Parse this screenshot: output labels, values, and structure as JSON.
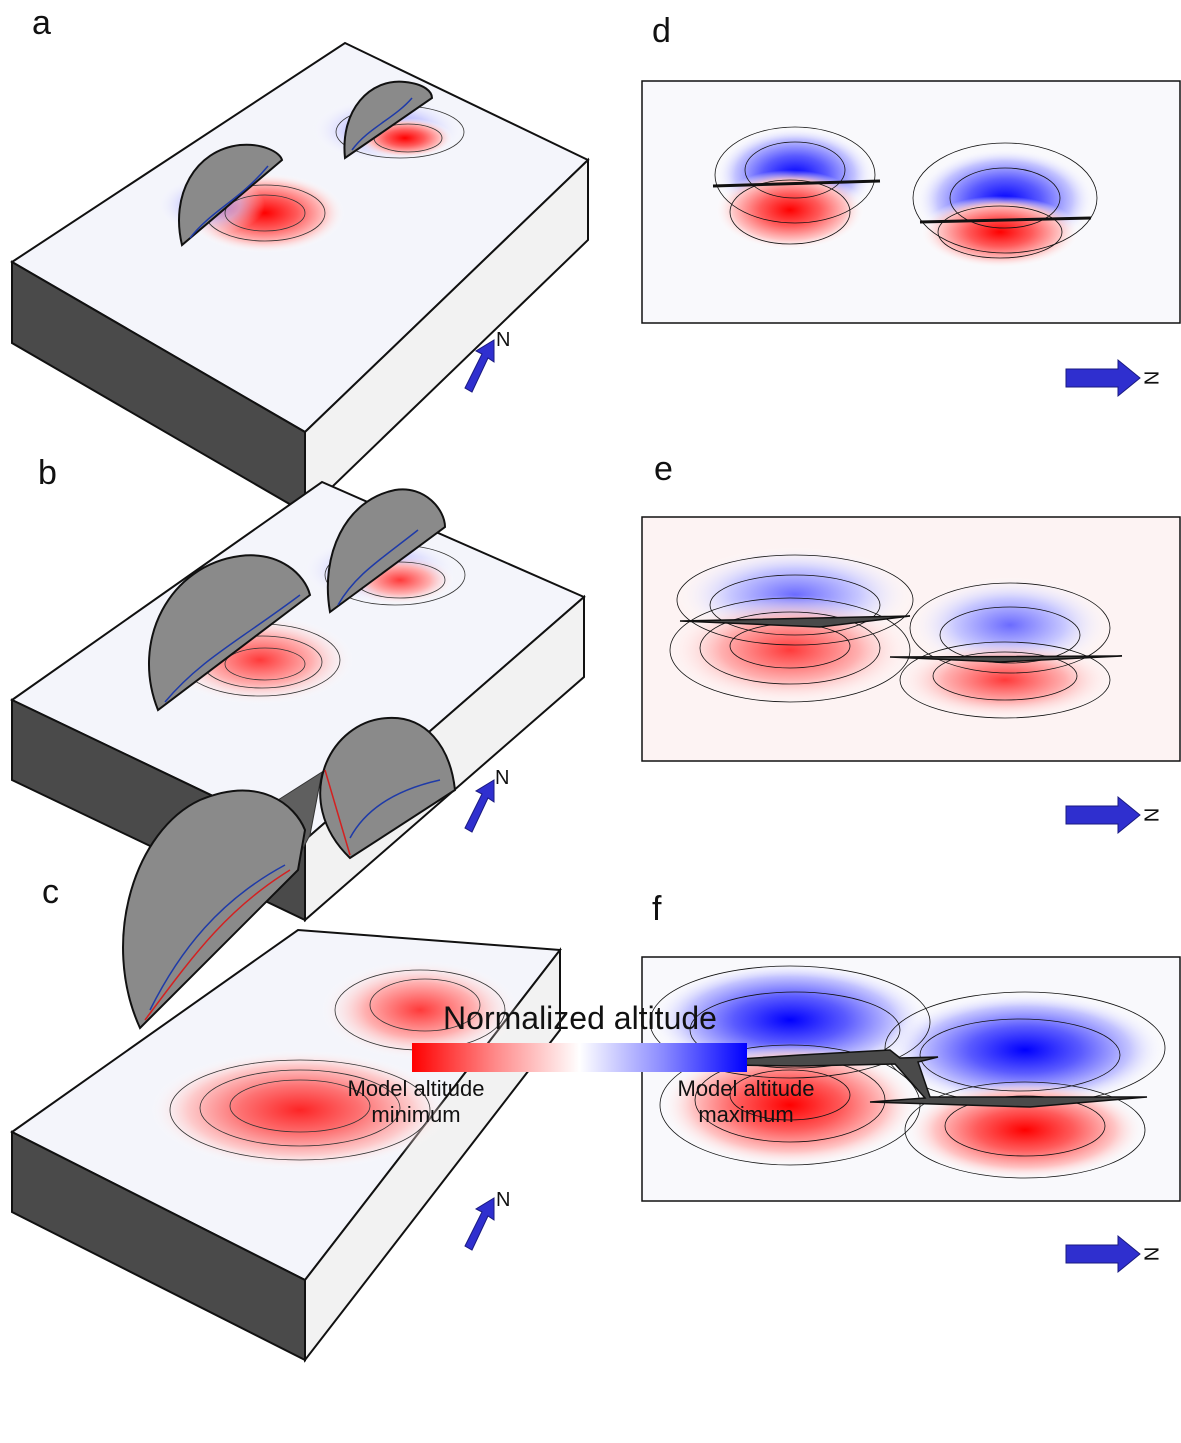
{
  "panels": {
    "a": "a",
    "b": "b",
    "c": "c",
    "d": "d",
    "e": "e",
    "f": "f"
  },
  "compass": {
    "north": "N",
    "north_rotated": "N"
  },
  "legend": {
    "title": "Normalized altitude",
    "min_line1": "Model altitude",
    "min_line2": "minimum",
    "max_line1": "Model altitude",
    "max_line2": "maximum",
    "colors": [
      "#ff0000",
      "#ffffff",
      "#0000ff"
    ]
  }
}
